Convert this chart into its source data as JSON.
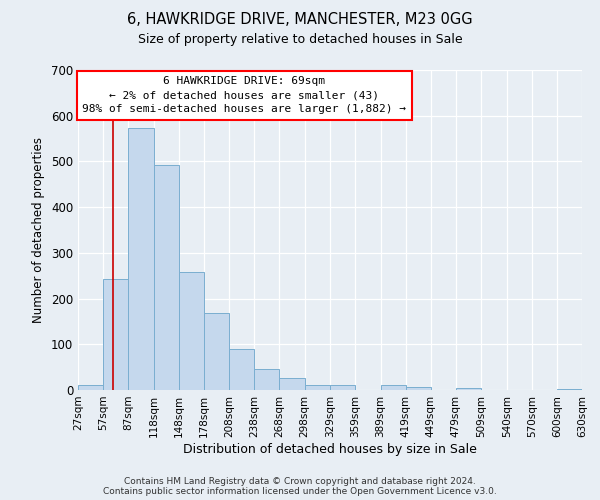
{
  "title": "6, HAWKRIDGE DRIVE, MANCHESTER, M23 0GG",
  "subtitle": "Size of property relative to detached houses in Sale",
  "xlabel": "Distribution of detached houses by size in Sale",
  "ylabel": "Number of detached properties",
  "bar_color": "#c5d8ed",
  "bar_edge_color": "#7aaed0",
  "background_color": "#e8eef4",
  "plot_bg_color": "#e8eef4",
  "grid_color": "#ffffff",
  "vline_color": "#cc0000",
  "vline_x": 69,
  "bin_edges": [
    27,
    57,
    87,
    118,
    148,
    178,
    208,
    238,
    268,
    298,
    329,
    359,
    389,
    419,
    449,
    479,
    509,
    540,
    570,
    600,
    630
  ],
  "bar_heights": [
    12,
    243,
    573,
    492,
    258,
    168,
    90,
    47,
    27,
    12,
    10,
    0,
    10,
    7,
    0,
    4,
    0,
    0,
    0,
    3
  ],
  "ylim": [
    0,
    700
  ],
  "yticks": [
    0,
    100,
    200,
    300,
    400,
    500,
    600,
    700
  ],
  "annotation_lines": [
    "6 HAWKRIDGE DRIVE: 69sqm",
    "← 2% of detached houses are smaller (43)",
    "98% of semi-detached houses are larger (1,882) →"
  ],
  "footnote1": "Contains HM Land Registry data © Crown copyright and database right 2024.",
  "footnote2": "Contains public sector information licensed under the Open Government Licence v3.0."
}
